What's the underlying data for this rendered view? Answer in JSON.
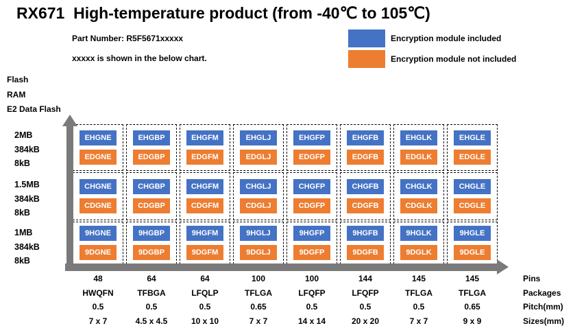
{
  "title": "RX671  High-temperature product (from -40℃ to 105℃)",
  "notes": {
    "part_number": "Part Number: R5F5671xxxxx",
    "hint": "xxxxx is shown in the below chart."
  },
  "legend": {
    "included": {
      "label": "Encryption module included",
      "color": "#4472C4"
    },
    "not_included": {
      "label": "Encryption module not included",
      "color": "#ED7D31"
    }
  },
  "colors": {
    "arrow": "#7a7a7a"
  },
  "axis": {
    "y_labels": [
      "Flash",
      "RAM",
      "E2 Data Flash"
    ],
    "x_footer_labels": [
      "Pins",
      "Packages",
      "Pitch(mm)",
      "Sizes(mm)"
    ]
  },
  "rows": [
    {
      "flash": "2MB",
      "ram": "384kB",
      "e2": "8kB",
      "parts": [
        {
          "included": "EHGNE",
          "not_included": "EDGNE"
        },
        {
          "included": "EHGBP",
          "not_included": "EDGBP"
        },
        {
          "included": "EHGFM",
          "not_included": "EDGFM"
        },
        {
          "included": "EHGLJ",
          "not_included": "EDGLJ"
        },
        {
          "included": "EHGFP",
          "not_included": "EDGFP"
        },
        {
          "included": "EHGFB",
          "not_included": "EDGFB"
        },
        {
          "included": "EHGLK",
          "not_included": "EDGLK"
        },
        {
          "included": "EHGLE",
          "not_included": "EDGLE"
        }
      ]
    },
    {
      "flash": "1.5MB",
      "ram": "384kB",
      "e2": "8kB",
      "parts": [
        {
          "included": "CHGNE",
          "not_included": "CDGNE"
        },
        {
          "included": "CHGBP",
          "not_included": "CDGBP"
        },
        {
          "included": "CHGFM",
          "not_included": "CDGFM"
        },
        {
          "included": "CHGLJ",
          "not_included": "CDGLJ"
        },
        {
          "included": "CHGFP",
          "not_included": "CDGFP"
        },
        {
          "included": "CHGFB",
          "not_included": "CDGFB"
        },
        {
          "included": "CHGLK",
          "not_included": "CDGLK"
        },
        {
          "included": "CHGLE",
          "not_included": "CDGLE"
        }
      ]
    },
    {
      "flash": "1MB",
      "ram": "384kB",
      "e2": "8kB",
      "parts": [
        {
          "included": "9HGNE",
          "not_included": "9DGNE"
        },
        {
          "included": "9HGBP",
          "not_included": "9DGBP"
        },
        {
          "included": "9HGFM",
          "not_included": "9DGFM"
        },
        {
          "included": "9HGLJ",
          "not_included": "9DGLJ"
        },
        {
          "included": "9HGFP",
          "not_included": "9DGFP"
        },
        {
          "included": "9HGFB",
          "not_included": "9DGFB"
        },
        {
          "included": "9HGLK",
          "not_included": "9DGLK"
        },
        {
          "included": "9HGLE",
          "not_included": "9DGLE"
        }
      ]
    }
  ],
  "columns": [
    {
      "pins": "48",
      "package": "HWQFN",
      "pitch": "0.5",
      "size": "7 x 7"
    },
    {
      "pins": "64",
      "package": "TFBGA",
      "pitch": "0.5",
      "size": "4.5 x 4.5"
    },
    {
      "pins": "64",
      "package": "LFQLP",
      "pitch": "0.5",
      "size": "10 x 10"
    },
    {
      "pins": "100",
      "package": "TFLGA",
      "pitch": "0.65",
      "size": "7 x 7"
    },
    {
      "pins": "100",
      "package": "LFQFP",
      "pitch": "0.5",
      "size": "14 x 14"
    },
    {
      "pins": "144",
      "package": "LFQFP",
      "pitch": "0.5",
      "size": "20 x 20"
    },
    {
      "pins": "145",
      "package": "TFLGA",
      "pitch": "0.5",
      "size": "7 x 7"
    },
    {
      "pins": "145",
      "package": "TFLGA",
      "pitch": "0.65",
      "size": "9 x 9"
    }
  ]
}
